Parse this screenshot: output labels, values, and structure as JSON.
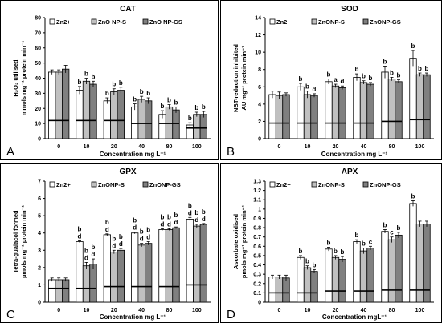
{
  "chart_data": [
    {
      "type": "bar",
      "panel": "A",
      "title": "CAT",
      "xlabel": "Concentration mg L⁻¹",
      "ylabel": "H₂O₂ utilised",
      "ylabel2": "mmols mg⁻¹ protein min⁻¹",
      "categories": [
        "0",
        "10",
        "20",
        "40",
        "80",
        "100"
      ],
      "yticks": [
        "0",
        "10",
        "20",
        "30",
        "40",
        "50",
        "60",
        "70",
        "80"
      ],
      "ylim": [
        0,
        80
      ],
      "series": [
        {
          "name": "Zn2+",
          "color": "#ffffff",
          "values": [
            44,
            32,
            25,
            21,
            16,
            9
          ],
          "errors": [
            1.5,
            2.5,
            2,
            2,
            2.5,
            1.5
          ]
        },
        {
          "name": "ZnO NP-S",
          "color": "#c0c0c0",
          "values": [
            44,
            38,
            31,
            26,
            21,
            16
          ],
          "errors": [
            1.5,
            2,
            2,
            2,
            1.5,
            1.5
          ]
        },
        {
          "name": "ZnO NP-GS",
          "color": "#808080",
          "values": [
            46,
            36,
            32,
            25,
            19,
            16
          ],
          "errors": [
            2.5,
            2,
            2,
            2,
            2,
            2
          ]
        }
      ],
      "baseline": [
        12,
        12,
        12,
        10,
        10,
        7
      ],
      "letters": [
        [
          "",
          "",
          ""
        ],
        [
          "b",
          "b",
          "b"
        ],
        [
          "b",
          "b",
          "b"
        ],
        [
          "b",
          "b",
          "b"
        ],
        [
          "b",
          "b",
          "b"
        ],
        [
          "b",
          "b",
          "b"
        ]
      ]
    },
    {
      "type": "bar",
      "panel": "B",
      "title": "SOD",
      "xlabel": "Concentration mg L⁻¹",
      "ylabel": "NBT-reduction inhibited",
      "ylabel2": "AU mg⁻¹ protein min⁻¹",
      "categories": [
        "0",
        "10",
        "20",
        "40",
        "80",
        "100"
      ],
      "yticks": [
        "0",
        "2",
        "4",
        "6",
        "8",
        "10",
        "12",
        "14"
      ],
      "ylim": [
        0,
        14
      ],
      "series": [
        {
          "name": "Zn2+",
          "color": "#ffffff",
          "values": [
            5.1,
            6.0,
            6.6,
            7.1,
            7.7,
            9.3
          ],
          "errors": [
            0.4,
            0.4,
            0.3,
            0.4,
            0.7,
            0.9
          ]
        },
        {
          "name": "ZnONP-S",
          "color": "#c0c0c0",
          "values": [
            5.0,
            5.1,
            6.1,
            6.5,
            6.9,
            7.4
          ],
          "errors": [
            0.4,
            0.4,
            0.2,
            0.2,
            0.2,
            0.2
          ]
        },
        {
          "name": "ZnONP-GS",
          "color": "#808080",
          "values": [
            5.1,
            5.0,
            5.9,
            6.3,
            6.6,
            7.4
          ],
          "errors": [
            0.2,
            0.2,
            0.2,
            0.2,
            0.2,
            0.2
          ]
        }
      ],
      "baseline": [
        1.8,
        1.8,
        1.8,
        1.8,
        2.0,
        2.2
      ],
      "letters": [
        [
          "",
          "",
          ""
        ],
        [
          "b",
          "b",
          "d"
        ],
        [
          "b",
          "a",
          "d"
        ],
        [
          "b",
          "b",
          "b"
        ],
        [
          "b",
          "b",
          "b"
        ],
        [
          "b",
          "b",
          "b"
        ]
      ]
    },
    {
      "type": "bar",
      "panel": "C",
      "title": "GPX",
      "xlabel": "Concentration mg L⁻¹",
      "ylabel": "Tetra-guaiacol formed",
      "ylabel2": "µmols mg⁻¹ protein min⁻¹",
      "categories": [
        "0",
        "10",
        "20",
        "40",
        "80",
        "100"
      ],
      "yticks": [
        "0",
        "1",
        "2",
        "3",
        "4",
        "5",
        "6",
        "7"
      ],
      "ylim": [
        0,
        7
      ],
      "series": [
        {
          "name": "Zn2+",
          "color": "#ffffff",
          "values": [
            1.3,
            3.5,
            3.9,
            4.0,
            4.2,
            4.8
          ],
          "errors": [
            0.1,
            0.05,
            0.05,
            0.05,
            0.05,
            0.1
          ]
        },
        {
          "name": "ZnONP-S",
          "color": "#c0c0c0",
          "values": [
            1.3,
            2.1,
            2.9,
            3.3,
            4.2,
            4.4
          ],
          "errors": [
            0.1,
            0.2,
            0.1,
            0.1,
            0.05,
            0.1
          ]
        },
        {
          "name": "ZnONP-GS",
          "color": "#808080",
          "values": [
            1.3,
            2.2,
            3.0,
            3.4,
            4.3,
            4.5
          ],
          "errors": [
            0.1,
            0.3,
            0.1,
            0.1,
            0.05,
            0.05
          ]
        }
      ],
      "baseline": [
        0.8,
        0.8,
        0.9,
        0.9,
        0.9,
        1.0
      ],
      "letters": [
        [
          "",
          "",
          ""
        ],
        [
          "bd",
          "bd",
          "bd"
        ],
        [
          "bd",
          "bd",
          "bd"
        ],
        [
          "bd",
          "bd",
          "bd"
        ],
        [
          "bd",
          "bd",
          "bd"
        ],
        [
          "bd",
          "bd",
          "bd"
        ]
      ]
    },
    {
      "type": "bar",
      "panel": "D",
      "title": "APX",
      "xlabel": "Concentration mgL⁻¹",
      "ylabel": "Ascorbate oxidised",
      "ylabel2": "pmols mg⁻¹ protein min⁻¹",
      "categories": [
        "0",
        "10",
        "20",
        "40",
        "80",
        "100"
      ],
      "yticks": [
        "0",
        "0.1",
        "0.2",
        "0.3",
        "0.4",
        "0.5",
        "0.6",
        "0.7",
        "0.8",
        "0.9",
        "1",
        "1.1",
        "1.2",
        "1.3"
      ],
      "ylim": [
        0,
        1.3
      ],
      "series": [
        {
          "name": "Zn2+",
          "color": "#ffffff",
          "values": [
            0.27,
            0.48,
            0.57,
            0.65,
            0.76,
            1.06
          ],
          "errors": [
            0.02,
            0.02,
            0.02,
            0.02,
            0.02,
            0.03
          ]
        },
        {
          "name": "ZnONP-S",
          "color": "#c0c0c0",
          "values": [
            0.27,
            0.37,
            0.48,
            0.55,
            0.67,
            0.84
          ],
          "errors": [
            0.02,
            0.02,
            0.02,
            0.03,
            0.03,
            0.03
          ]
        },
        {
          "name": "ZnONP-GS",
          "color": "#808080",
          "values": [
            0.26,
            0.33,
            0.46,
            0.58,
            0.72,
            0.84
          ],
          "errors": [
            0.03,
            0.02,
            0.03,
            0.02,
            0.03,
            0.03
          ]
        }
      ],
      "baseline": [
        0.1,
        0.1,
        0.12,
        0.12,
        0.13,
        0.13
      ],
      "letters": [
        [
          "",
          "",
          ""
        ],
        [
          "b",
          "b",
          "b"
        ],
        [
          "b",
          "b",
          "b"
        ],
        [
          "b",
          "b",
          "c"
        ],
        [
          "b",
          "c",
          "b"
        ],
        [
          "b",
          "",
          ""
        ]
      ]
    }
  ]
}
